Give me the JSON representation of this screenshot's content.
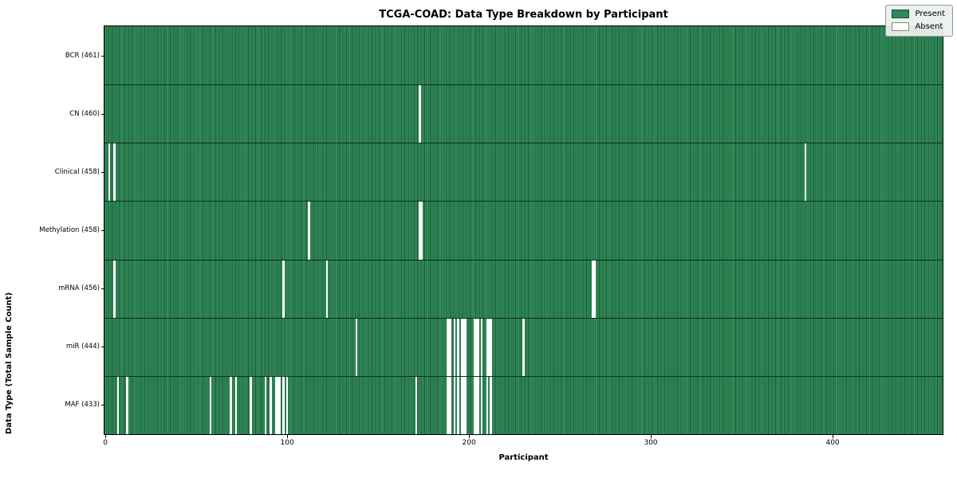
{
  "figure": {
    "title": "TCGA-COAD: Data Type Breakdown by Participant",
    "xlabel": "Participant",
    "ylabel": "Data Type (Total Sample Count)"
  },
  "legend": {
    "present_label": "Present",
    "absent_label": "Absent"
  },
  "colors": {
    "present": "#2e8b57",
    "absent": "#ffffff",
    "bar_edge": "#1c4a33",
    "axis": "#000000",
    "legend_bg": "#eaf0eb"
  },
  "chart_data": {
    "type": "heatmap",
    "title": "TCGA-COAD: Data Type Breakdown by Participant",
    "xlabel": "Participant",
    "ylabel": "Data Type (Total Sample Count)",
    "legend": [
      "Present",
      "Absent"
    ],
    "legend_position": "upper right",
    "grid": false,
    "n_participants": 461,
    "xlim": [
      -0.5,
      460.5
    ],
    "x_ticks": [
      0,
      100,
      200,
      300,
      400
    ],
    "value_encoding": {
      "present": "#2e8b57",
      "absent": "#ffffff"
    },
    "rows": [
      {
        "label": "BCR (461)",
        "data_type": "BCR",
        "present_count": 461,
        "absent_indices": []
      },
      {
        "label": "CN (460)",
        "data_type": "CN",
        "present_count": 460,
        "absent_indices": [
          173
        ]
      },
      {
        "label": "Clinical (458)",
        "data_type": "Clinical",
        "present_count": 458,
        "absent_indices": [
          2,
          5,
          385
        ]
      },
      {
        "label": "Methylation (458)",
        "data_type": "Methylation",
        "present_count": 458,
        "absent_indices": [
          112,
          173,
          174
        ]
      },
      {
        "label": "mRNA (456)",
        "data_type": "mRNA",
        "present_count": 456,
        "absent_indices": [
          5,
          98,
          122,
          268,
          269
        ]
      },
      {
        "label": "miR (444)",
        "data_type": "miR",
        "present_count": 444,
        "absent_indices": [
          138,
          188,
          189,
          190,
          192,
          194,
          196,
          197,
          198,
          203,
          204,
          205,
          207,
          210,
          211,
          212,
          230
        ]
      },
      {
        "label": "MAF (433)",
        "data_type": "MAF",
        "present_count": 433,
        "absent_indices": [
          7,
          12,
          58,
          69,
          72,
          80,
          88,
          91,
          94,
          95,
          96,
          98,
          100,
          171,
          188,
          189,
          190,
          192,
          194,
          196,
          197,
          198,
          203,
          204,
          205,
          207,
          210,
          212
        ]
      }
    ]
  }
}
